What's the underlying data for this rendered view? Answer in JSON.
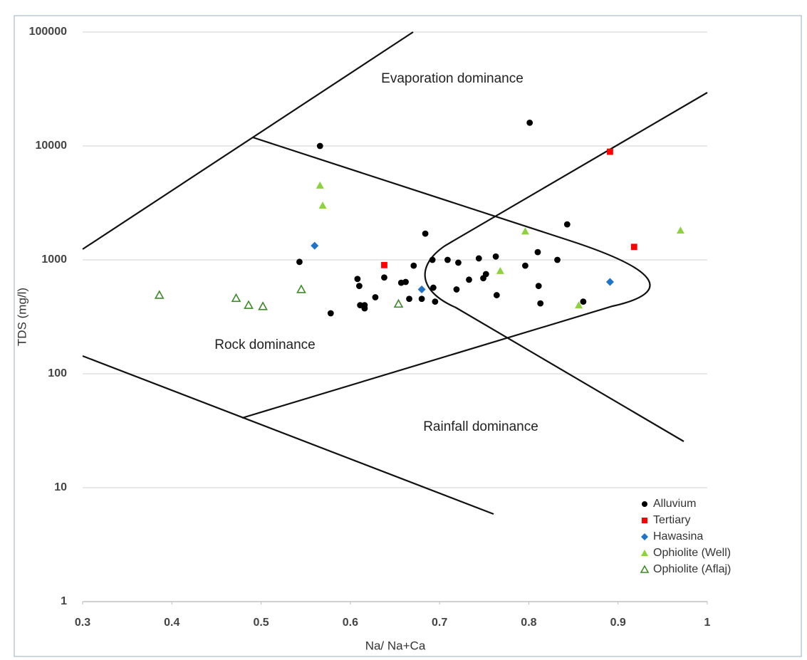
{
  "chart_data": {
    "type": "scatter",
    "x_label": "Na/ Na+Ca",
    "y_label": "TDS (mg/l)",
    "xlim": [
      0.3,
      1
    ],
    "xticks": [
      0.3,
      0.4,
      0.5,
      0.6,
      0.7,
      0.8,
      0.9,
      1
    ],
    "ylim": [
      1,
      100000
    ],
    "yticks": [
      1,
      10,
      100,
      1000,
      10000,
      100000
    ],
    "y_log": true,
    "grid": true,
    "legend": "lower-right",
    "annotations": [
      "Evaporation dominance",
      "Rock dominance",
      "Rainfall dominance"
    ],
    "series": [
      {
        "name": "Alluvium",
        "color": "#000000",
        "marker": "circle",
        "x": [
          0.801,
          0.566,
          0.543,
          0.843,
          0.684,
          0.578,
          0.608,
          0.61,
          0.638,
          0.628,
          0.611,
          0.616,
          0.616,
          0.657,
          0.662,
          0.666,
          0.671,
          0.68,
          0.692,
          0.693,
          0.695,
          0.709,
          0.721,
          0.719,
          0.733,
          0.744,
          0.749,
          0.752,
          0.763,
          0.764,
          0.796,
          0.81,
          0.811,
          0.813,
          0.832,
          0.861
        ],
        "values": [
          16000,
          10000,
          960,
          2050,
          1700,
          340,
          680,
          590,
          700,
          470,
          400,
          400,
          375,
          630,
          640,
          455,
          890,
          455,
          1000,
          570,
          430,
          1000,
          945,
          550,
          670,
          1030,
          690,
          750,
          1070,
          490,
          890,
          1170,
          590,
          415,
          1000,
          430
        ]
      },
      {
        "name": "Tertiary",
        "color": "#ff0000",
        "marker": "square",
        "x": [
          0.638,
          0.891,
          0.918
        ],
        "values": [
          900,
          8900,
          1300
        ]
      },
      {
        "name": "Hawasina",
        "color": "#1f73c8",
        "marker": "diamond",
        "x": [
          0.56,
          0.68,
          0.891
        ],
        "values": [
          1330,
          550,
          640
        ]
      },
      {
        "name": "Ophiolite (Well)",
        "color": "#8cd23c",
        "marker": "triangle",
        "x": [
          0.566,
          0.569,
          0.796,
          0.768,
          0.856,
          0.97
        ],
        "values": [
          4500,
          3000,
          1780,
          800,
          400,
          1810
        ]
      },
      {
        "name": "Ophiolite (Aflaj)",
        "color": "#3f8a2a",
        "marker": "triangle-open",
        "x": [
          0.386,
          0.472,
          0.486,
          0.502,
          0.545,
          0.654
        ],
        "values": [
          490,
          460,
          400,
          390,
          550,
          410
        ]
      }
    ]
  }
}
